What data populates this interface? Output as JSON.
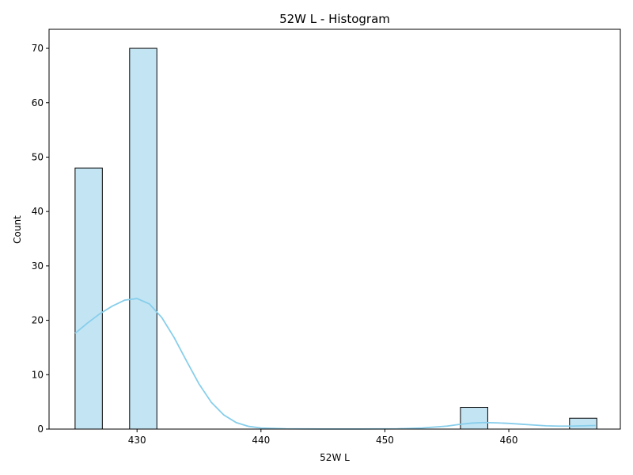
{
  "chart_data": {
    "type": "bar",
    "subtype": "histogram",
    "title": "52W L  - Histogram",
    "xlabel": "52W L",
    "ylabel": "Count",
    "xlim": [
      422.9,
      469.0
    ],
    "ylim": [
      0,
      73.5
    ],
    "xticks": [
      430,
      440,
      450,
      460
    ],
    "yticks": [
      0,
      10,
      20,
      30,
      40,
      50,
      60,
      70
    ],
    "grid": false,
    "legend": "none",
    "bins": [
      {
        "x0": 425.0,
        "x1": 427.2,
        "count": 48
      },
      {
        "x0": 429.4,
        "x1": 431.6,
        "count": 70
      },
      {
        "x0": 456.1,
        "x1": 458.3,
        "count": 4
      },
      {
        "x0": 464.9,
        "x1": 467.1,
        "count": 2
      }
    ],
    "kde": {
      "x": [
        425,
        426,
        427,
        428,
        429,
        430,
        431,
        432,
        433,
        434,
        435,
        436,
        437,
        438,
        439,
        440,
        442,
        445,
        448,
        451,
        453,
        455,
        456,
        457,
        458,
        459,
        460,
        461,
        462,
        463,
        464,
        465,
        466,
        467
      ],
      "y": [
        17.6,
        19.5,
        21.2,
        22.6,
        23.7,
        24.0,
        23.0,
        20.5,
        16.8,
        12.5,
        8.3,
        4.9,
        2.6,
        1.2,
        0.5,
        0.2,
        0.05,
        0.02,
        0.02,
        0.05,
        0.2,
        0.55,
        0.85,
        1.1,
        1.2,
        1.15,
        1.05,
        0.9,
        0.75,
        0.6,
        0.55,
        0.55,
        0.6,
        0.65
      ]
    },
    "colors": {
      "bar_fill": "#c3e4f3",
      "bar_edge": "#000000",
      "kde_line": "#87ceeb"
    }
  }
}
